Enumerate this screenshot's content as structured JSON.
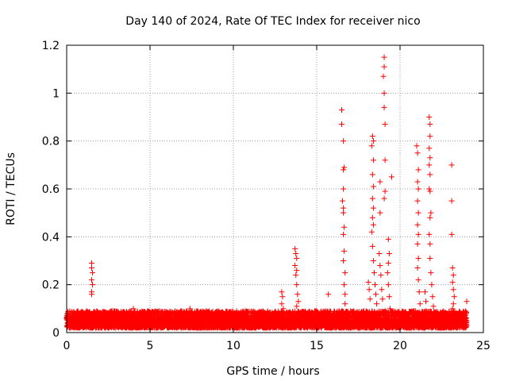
{
  "chart_data": {
    "type": "scatter",
    "title": "Day 140 of 2024, Rate Of TEC Index for receiver nico",
    "xlabel": "GPS time / hours",
    "ylabel": "ROTI / TECUs",
    "xlim": [
      0,
      25
    ],
    "ylim": [
      0,
      1.2
    ],
    "xticks": [
      0,
      5,
      10,
      15,
      20,
      25
    ],
    "xtick_labels": [
      "0",
      "5",
      "10",
      "15",
      "20",
      "25"
    ],
    "yticks": [
      0,
      0.2,
      0.4,
      0.6,
      0.8,
      1.0,
      1.2
    ],
    "ytick_labels": [
      "0",
      "0.2",
      "0.4",
      "0.6",
      "0.8",
      "1",
      "1.2"
    ],
    "grid": true,
    "marker": "+",
    "color": "#ff0000",
    "baseline": {
      "x_range": [
        0,
        24
      ],
      "y_range": [
        0.02,
        0.09
      ],
      "note": "dense background band of points"
    },
    "series": [
      {
        "name": "ROTI",
        "points": [
          [
            1.5,
            0.29
          ],
          [
            1.5,
            0.27
          ],
          [
            1.55,
            0.25
          ],
          [
            1.5,
            0.22
          ],
          [
            1.55,
            0.2
          ],
          [
            1.5,
            0.17
          ],
          [
            1.5,
            0.16
          ],
          [
            4.0,
            0.1
          ],
          [
            7.4,
            0.1
          ],
          [
            12.9,
            0.17
          ],
          [
            12.95,
            0.15
          ],
          [
            12.9,
            0.12
          ],
          [
            13.0,
            0.1
          ],
          [
            13.7,
            0.35
          ],
          [
            13.75,
            0.33
          ],
          [
            13.8,
            0.31
          ],
          [
            13.7,
            0.28
          ],
          [
            13.8,
            0.26
          ],
          [
            13.75,
            0.24
          ],
          [
            13.8,
            0.2
          ],
          [
            13.85,
            0.16
          ],
          [
            13.9,
            0.13
          ],
          [
            13.8,
            0.11
          ],
          [
            15.7,
            0.16
          ],
          [
            16.5,
            0.93
          ],
          [
            16.5,
            0.87
          ],
          [
            16.6,
            0.8
          ],
          [
            16.65,
            0.69
          ],
          [
            16.6,
            0.68
          ],
          [
            16.6,
            0.6
          ],
          [
            16.55,
            0.55
          ],
          [
            16.6,
            0.52
          ],
          [
            16.6,
            0.5
          ],
          [
            16.65,
            0.44
          ],
          [
            16.6,
            0.41
          ],
          [
            16.65,
            0.34
          ],
          [
            16.6,
            0.3
          ],
          [
            16.7,
            0.25
          ],
          [
            16.65,
            0.2
          ],
          [
            16.7,
            0.16
          ],
          [
            16.7,
            0.12
          ],
          [
            18.1,
            0.21
          ],
          [
            18.15,
            0.18
          ],
          [
            18.2,
            0.14
          ],
          [
            18.35,
            0.82
          ],
          [
            18.4,
            0.8
          ],
          [
            18.3,
            0.78
          ],
          [
            18.4,
            0.72
          ],
          [
            18.35,
            0.66
          ],
          [
            18.4,
            0.61
          ],
          [
            18.35,
            0.56
          ],
          [
            18.4,
            0.52
          ],
          [
            18.35,
            0.48
          ],
          [
            18.4,
            0.45
          ],
          [
            18.3,
            0.42
          ],
          [
            18.35,
            0.36
          ],
          [
            18.4,
            0.3
          ],
          [
            18.45,
            0.25
          ],
          [
            18.5,
            0.2
          ],
          [
            18.55,
            0.16
          ],
          [
            18.6,
            0.12
          ],
          [
            18.8,
            0.63
          ],
          [
            18.8,
            0.5
          ],
          [
            18.75,
            0.33
          ],
          [
            18.8,
            0.28
          ],
          [
            18.85,
            0.24
          ],
          [
            18.9,
            0.18
          ],
          [
            18.95,
            0.14
          ],
          [
            19.05,
            1.15
          ],
          [
            19.05,
            1.11
          ],
          [
            19.0,
            1.07
          ],
          [
            19.05,
            1.0
          ],
          [
            19.05,
            0.94
          ],
          [
            19.1,
            0.87
          ],
          [
            19.1,
            0.72
          ],
          [
            19.1,
            0.59
          ],
          [
            19.05,
            0.56
          ],
          [
            19.3,
            0.39
          ],
          [
            19.35,
            0.33
          ],
          [
            19.3,
            0.29
          ],
          [
            19.25,
            0.25
          ],
          [
            19.3,
            0.2
          ],
          [
            19.35,
            0.15
          ],
          [
            19.4,
            0.1
          ],
          [
            19.5,
            0.65
          ],
          [
            21.0,
            0.78
          ],
          [
            21.05,
            0.75
          ],
          [
            21.1,
            0.68
          ],
          [
            21.05,
            0.63
          ],
          [
            21.1,
            0.6
          ],
          [
            21.05,
            0.55
          ],
          [
            21.1,
            0.5
          ],
          [
            21.05,
            0.45
          ],
          [
            21.1,
            0.41
          ],
          [
            21.05,
            0.37
          ],
          [
            21.1,
            0.31
          ],
          [
            21.05,
            0.27
          ],
          [
            21.1,
            0.22
          ],
          [
            21.15,
            0.17
          ],
          [
            21.2,
            0.12
          ],
          [
            21.5,
            0.17
          ],
          [
            21.55,
            0.13
          ],
          [
            21.75,
            0.9
          ],
          [
            21.8,
            0.87
          ],
          [
            21.8,
            0.82
          ],
          [
            21.75,
            0.77
          ],
          [
            21.8,
            0.73
          ],
          [
            21.75,
            0.7
          ],
          [
            21.8,
            0.66
          ],
          [
            21.75,
            0.6
          ],
          [
            21.8,
            0.59
          ],
          [
            21.85,
            0.5
          ],
          [
            21.8,
            0.48
          ],
          [
            21.75,
            0.41
          ],
          [
            21.8,
            0.37
          ],
          [
            21.8,
            0.31
          ],
          [
            21.85,
            0.25
          ],
          [
            21.9,
            0.2
          ],
          [
            21.95,
            0.15
          ],
          [
            22.0,
            0.11
          ],
          [
            23.1,
            0.7
          ],
          [
            23.1,
            0.55
          ],
          [
            23.1,
            0.41
          ],
          [
            23.15,
            0.27
          ],
          [
            23.2,
            0.24
          ],
          [
            23.15,
            0.21
          ],
          [
            23.2,
            0.18
          ],
          [
            23.25,
            0.15
          ],
          [
            23.2,
            0.12
          ],
          [
            23.15,
            0.1
          ],
          [
            24.0,
            0.13
          ]
        ]
      }
    ]
  }
}
